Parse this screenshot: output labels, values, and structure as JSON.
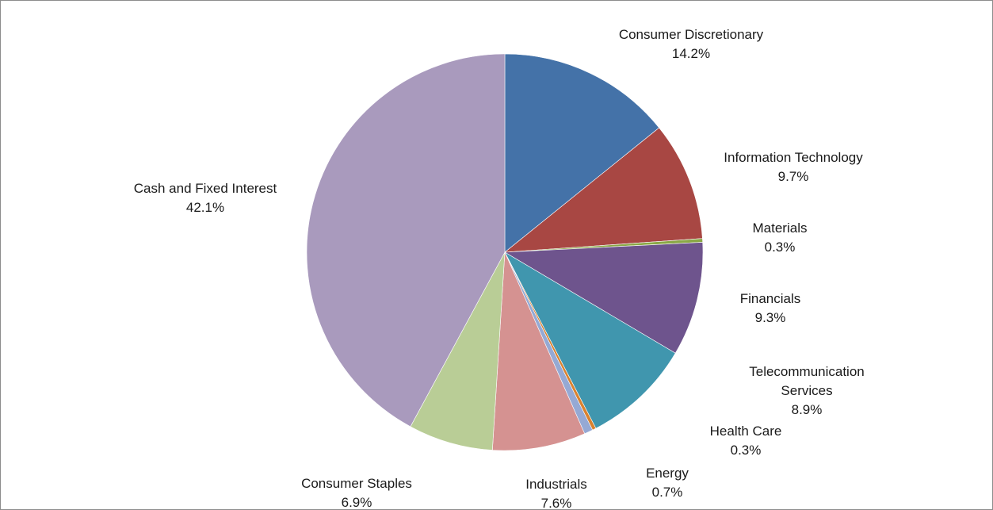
{
  "chart_data": {
    "type": "pie",
    "title": "",
    "start_angle_deg": 0,
    "direction": "clockwise",
    "slices": [
      {
        "label": "Consumer Discretionary",
        "value": 14.2,
        "value_label": "14.2%",
        "color": "#4472a8"
      },
      {
        "label": "Information Technology",
        "value": 9.7,
        "value_label": "9.7%",
        "color": "#a84743"
      },
      {
        "label": "Materials",
        "value": 0.3,
        "value_label": "0.3%",
        "color": "#8aa846"
      },
      {
        "label": "Financials",
        "value": 9.3,
        "value_label": "9.3%",
        "color": "#6e548d"
      },
      {
        "label": "Telecommunication Services",
        "value": 8.9,
        "value_label": "8.9%",
        "color": "#4096ae"
      },
      {
        "label": "Health Care",
        "value": 0.3,
        "value_label": "0.3%",
        "color": "#d9822f"
      },
      {
        "label": "Energy",
        "value": 0.7,
        "value_label": "0.7%",
        "color": "#95a9d4"
      },
      {
        "label": "Industrials",
        "value": 7.6,
        "value_label": "7.6%",
        "color": "#d59291"
      },
      {
        "label": "Consumer Staples",
        "value": 6.9,
        "value_label": "6.9%",
        "color": "#b9cd96"
      },
      {
        "label": "Cash and Fixed Interest",
        "value": 42.1,
        "value_label": "42.1%",
        "color": "#a99abd"
      }
    ]
  }
}
